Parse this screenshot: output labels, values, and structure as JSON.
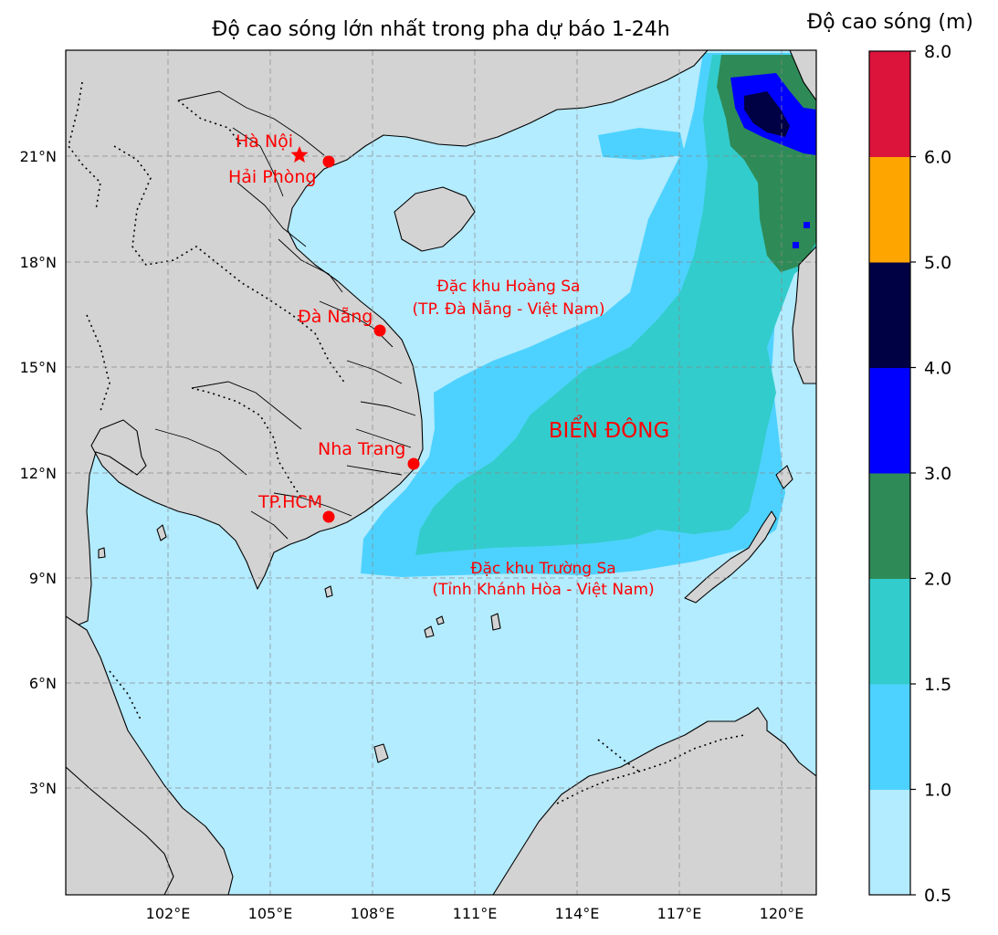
{
  "title": "Độ cao sóng lớn nhất trong pha dự báo 1-24h",
  "colorbar": {
    "title": "Độ cao sóng (m)",
    "ticks": [
      "0.5",
      "1.0",
      "1.5",
      "2.0",
      "3.0",
      "4.0",
      "5.0",
      "6.0",
      "8.0"
    ],
    "colors": [
      "#b3ebff",
      "#4dd2ff",
      "#33cccc",
      "#2e8b57",
      "#0000ff",
      "#000044",
      "#ffa500",
      "#dc143c"
    ]
  },
  "axes": {
    "lon_labels": [
      "102°E",
      "105°E",
      "108°E",
      "111°E",
      "114°E",
      "117°E",
      "120°E"
    ],
    "lat_labels": [
      "3°N",
      "6°N",
      "9°N",
      "12°N",
      "15°N",
      "18°N",
      "21°N"
    ]
  },
  "colors": {
    "land": "#d3d3d3",
    "sea_base": "#b3ebff",
    "label": "#ff0000",
    "grid": "#999999"
  },
  "places": {
    "ha_noi": "Hà Nội",
    "hai_phong": "Hải Phòng",
    "da_nang": "Đà Nẵng",
    "nha_trang": "Nha Trang",
    "tp_hcm": "TP.HCM"
  },
  "annotations": {
    "hoang_sa_line1": "Đặc khu Hoàng Sa",
    "hoang_sa_line2": "(TP. Đà Nẵng - Việt Nam)",
    "truong_sa_line1": "Đặc khu Trường Sa",
    "truong_sa_line2": "(Tỉnh Khánh Hòa - Việt Nam)",
    "bien_dong": "BIỂN ĐÔNG"
  }
}
